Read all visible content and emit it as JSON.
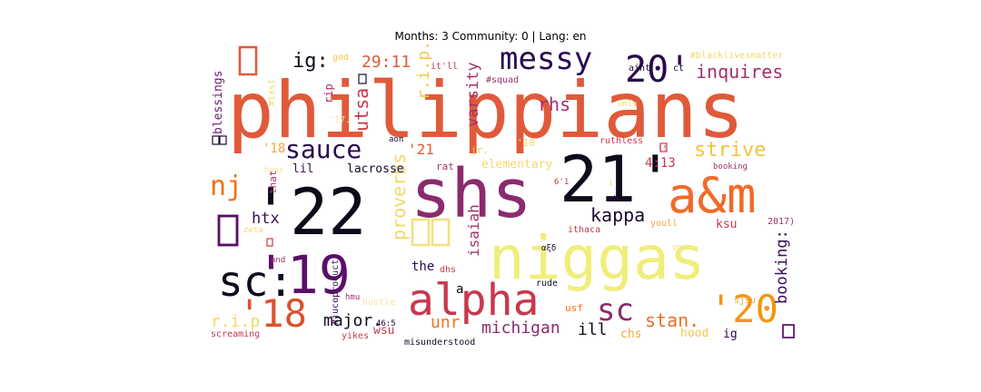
{
  "chart_data": {
    "type": "wordcloud",
    "title": "Months: 3 Community: 0 | Lang: en",
    "palette": "inferno",
    "words": [
      {
        "text": "philippians",
        "weight": 1.0,
        "color": "#e05a3a"
      },
      {
        "text": "shs",
        "weight": 0.78,
        "color": "#8c2a6e"
      },
      {
        "text": "21'",
        "weight": 0.74,
        "color": "#0d0a1a"
      },
      {
        "text": "'22",
        "weight": 0.74,
        "color": "#0d0a1a"
      },
      {
        "text": "niggas",
        "weight": 0.72,
        "color": "#f0ee7a"
      },
      {
        "text": "a&m",
        "weight": 0.62,
        "color": "#f06b28"
      },
      {
        "text": "'19",
        "weight": 0.62,
        "color": "#5a1068"
      },
      {
        "text": "alpha",
        "weight": 0.52,
        "color": "#c8384e"
      },
      {
        "text": "sc:",
        "weight": 0.5,
        "color": "#0d0a1a"
      },
      {
        "text": "20'",
        "weight": 0.4,
        "color": "#2a0b4e"
      },
      {
        "text": "'20",
        "weight": 0.44,
        "color": "#f49512"
      },
      {
        "text": "'18",
        "weight": 0.42,
        "color": "#d9522e"
      },
      {
        "text": "messy",
        "weight": 0.34,
        "color": "#2a0b4e"
      },
      {
        "text": "sc",
        "weight": 0.36,
        "color": "#8c2a6e"
      },
      {
        "text": "sauce",
        "weight": 0.28,
        "color": "#2a0b4e"
      },
      {
        "text": "nj",
        "weight": 0.3,
        "color": "#f07318"
      },
      {
        "text": "strive",
        "weight": 0.22,
        "color": "#f4c23a"
      },
      {
        "text": "inquires",
        "weight": 0.2,
        "color": "#a2306a"
      },
      {
        "text": "ig:",
        "weight": 0.2,
        "color": "#0d0a1a"
      },
      {
        "text": "29:11",
        "weight": 0.16,
        "color": "#e05a3a"
      },
      {
        "text": "r.i.p.",
        "weight": 0.16,
        "color": "#f4c84a"
      },
      {
        "text": "utsa",
        "weight": 0.18,
        "color": "#c8384e"
      },
      {
        "text": "varsity",
        "weight": 0.17,
        "color": "#a2306a"
      },
      {
        "text": "rhs",
        "weight": 0.18,
        "color": "#a2306a"
      },
      {
        "text": "proverbs",
        "weight": 0.18,
        "color": "#f4d86a"
      },
      {
        "text": "kappa",
        "weight": 0.18,
        "color": "#1a0a2e"
      },
      {
        "text": "isaiah",
        "weight": 0.16,
        "color": "#a2306a"
      },
      {
        "text": "booking:",
        "weight": 0.16,
        "color": "#3a0e58"
      },
      {
        "text": "stan.",
        "weight": 0.18,
        "color": "#e8702a"
      },
      {
        "text": "michigan",
        "weight": 0.16,
        "color": "#8c2a6e"
      },
      {
        "text": "major.",
        "weight": 0.16,
        "color": "#0d0a1a"
      },
      {
        "text": "r.i.p",
        "weight": 0.15,
        "color": "#f4d86a"
      },
      {
        "text": "unr",
        "weight": 0.15,
        "color": "#f07318"
      },
      {
        "text": "ill",
        "weight": 0.16,
        "color": "#0d0a1a"
      },
      {
        "text": "htx",
        "weight": 0.14,
        "color": "#3a0e58"
      },
      {
        "text": "'21",
        "weight": 0.14,
        "color": "#e05a3a"
      },
      {
        "text": "lil",
        "weight": 0.11,
        "color": "#3a0e58"
      },
      {
        "text": "lacrosse",
        "weight": 0.11,
        "color": "#1a0a2e"
      },
      {
        "text": "'18",
        "weight": 0.1,
        "color": "#f4a63a"
      },
      {
        "text": "blessings",
        "weight": 0.1,
        "color": "#6a1a70"
      },
      {
        "text": "elementary",
        "weight": 0.1,
        "color": "#f4d86a"
      },
      {
        "text": "4:13",
        "weight": 0.1,
        "color": "#c8384e"
      },
      {
        "text": "ksu",
        "weight": 0.1,
        "color": "#c8384e"
      },
      {
        "text": "the",
        "weight": 0.1,
        "color": "#2a0b4e"
      },
      {
        "text": "a",
        "weight": 0.1,
        "color": "#0d0a1a"
      },
      {
        "text": "chs",
        "weight": 0.1,
        "color": "#f4a63a"
      },
      {
        "text": "wsu",
        "weight": 0.1,
        "color": "#c8384e"
      },
      {
        "text": "hood",
        "weight": 0.1,
        "color": "#f4c84a"
      },
      {
        "text": "ig",
        "weight": 0.1,
        "color": "#2a0b4e"
      },
      {
        "text": "rat",
        "weight": 0.09,
        "color": "#a2306a"
      },
      {
        "text": "jr.",
        "weight": 0.08,
        "color": "#f4c84a"
      },
      {
        "text": "rip",
        "weight": 0.08,
        "color": "#a2306a"
      },
      {
        "text": "god",
        "weight": 0.07,
        "color": "#f4c84a"
      },
      {
        "text": "it'll",
        "weight": 0.07,
        "color": "#c8384e"
      },
      {
        "text": "#squad",
        "weight": 0.07,
        "color": "#a2306a"
      },
      {
        "text": "#blacklivesmatter",
        "weight": 0.07,
        "color": "#f4d86a"
      },
      {
        "text": "aint",
        "weight": 0.07,
        "color": "#1a0a2e"
      },
      {
        "text": "ct",
        "weight": 0.07,
        "color": "#1a0a2e"
      },
      {
        "text": "#txst",
        "weight": 0.07,
        "color": "#f4d86a"
      },
      {
        "text": "'17.",
        "weight": 0.07,
        "color": "#f4e49a"
      },
      {
        "text": "aoπ",
        "weight": 0.06,
        "color": "#1a0a2e"
      },
      {
        "text": "unlv",
        "weight": 0.06,
        "color": "#f4d86a"
      },
      {
        "text": "ruthless",
        "weight": 0.07,
        "color": "#c8384e"
      },
      {
        "text": "booking",
        "weight": 0.06,
        "color": "#a2306a"
      },
      {
        "text": "6'1",
        "weight": 0.06,
        "color": "#c8384e"
      },
      {
        "text": "vb",
        "weight": 0.06,
        "color": "#3a0e58"
      },
      {
        "text": "youll",
        "weight": 0.07,
        "color": "#f4a63a"
      },
      {
        "text": "2017)",
        "weight": 0.07,
        "color": "#a2306a"
      },
      {
        "text": "ithaca",
        "weight": 0.07,
        "color": "#c8384e"
      },
      {
        "text": "αξδ",
        "weight": 0.06,
        "color": "#1a0a2e"
      },
      {
        "text": "pnw",
        "weight": 0.06,
        "color": "#f4e49a"
      },
      {
        "text": "zeta",
        "weight": 0.06,
        "color": "#f4d86a"
      },
      {
        "text": "hoes",
        "weight": 0.06,
        "color": "#f4e49a"
      },
      {
        "text": "that",
        "weight": 0.07,
        "color": "#a2306a"
      },
      {
        "text": "and",
        "weight": 0.06,
        "color": "#a2306a"
      },
      {
        "text": "dhs",
        "weight": 0.06,
        "color": "#c8384e"
      },
      {
        "text": "hmu",
        "weight": 0.06,
        "color": "#a2306a"
      },
      {
        "text": "#jucoproduct",
        "weight": 0.06,
        "color": "#3a0e58"
      },
      {
        "text": "rude",
        "weight": 0.07,
        "color": "#1a0a2e"
      },
      {
        "text": "usf",
        "weight": 0.07,
        "color": "#f07318"
      },
      {
        "text": "sjsu",
        "weight": 0.07,
        "color": "#f4a63a"
      },
      {
        "text": "hustle",
        "weight": 0.06,
        "color": "#f4e49a"
      },
      {
        "text": "46:5",
        "weight": 0.06,
        "color": "#1a0a2e"
      },
      {
        "text": "misunderstood",
        "weight": 0.07,
        "color": "#1a0a2e"
      },
      {
        "text": "yikes",
        "weight": 0.06,
        "color": "#c8384e"
      },
      {
        "text": "screaming",
        "weight": 0.07,
        "color": "#c8384e"
      },
      {
        "text": "'18",
        "weight": 0.07,
        "color": "#f4d86a"
      },
      {
        "text": "i",
        "weight": 0.05,
        "color": "#f4d86a"
      },
      {
        "text": "!!",
        "weight": 0.05,
        "color": "#c8384e"
      }
    ]
  }
}
